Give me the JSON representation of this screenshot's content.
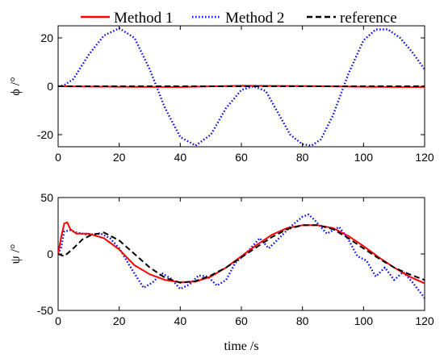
{
  "chart_data": [
    {
      "type": "line",
      "ylabel": "ϕ /°",
      "xlabel": "",
      "xlim": [
        0,
        120
      ],
      "ylim": [
        -25,
        25
      ],
      "xticks": [
        "0",
        "20",
        "40",
        "60",
        "80",
        "100",
        "120"
      ],
      "yticks": [
        "20",
        "0",
        "-20"
      ],
      "ytick_values": [
        20,
        0,
        -20
      ],
      "grid": false,
      "legend": {
        "placement": "top",
        "entries": [
          "Method 1",
          "Method 2",
          "reference"
        ]
      },
      "series": [
        {
          "name": "Method 1",
          "color": "#ff0000",
          "style": "solid",
          "x": [
            0,
            20,
            40,
            60,
            80,
            100,
            120
          ],
          "y": [
            0,
            -0.2,
            -0.3,
            0.2,
            0.1,
            -0.2,
            -0.3
          ]
        },
        {
          "name": "Method 2",
          "color": "#0000ff",
          "style": "dotted",
          "x": [
            0,
            2,
            5,
            10,
            15,
            20,
            25,
            30,
            35,
            40,
            45,
            50,
            55,
            60,
            64,
            68,
            72,
            76,
            80,
            83,
            86,
            90,
            95,
            100,
            104,
            108,
            112,
            116,
            120
          ],
          "y": [
            0,
            0.5,
            3,
            13,
            21,
            24,
            20,
            7,
            -9,
            -21,
            -24.5,
            -20,
            -9,
            -1.5,
            0,
            -2,
            -11,
            -20,
            -24,
            -24.5,
            -22,
            -12,
            5,
            19,
            23.5,
            23.5,
            20,
            14,
            7
          ]
        },
        {
          "name": "reference",
          "color": "#000000",
          "style": "dashed",
          "x": [
            0,
            20,
            40,
            60,
            80,
            100,
            120
          ],
          "y": [
            0,
            0,
            0,
            0,
            0,
            0,
            0
          ]
        }
      ]
    },
    {
      "type": "line",
      "ylabel": "ψ /°",
      "xlabel": "time /s",
      "xlim": [
        0,
        120
      ],
      "ylim": [
        -50,
        50
      ],
      "xticks": [
        "0",
        "20",
        "40",
        "60",
        "80",
        "100",
        "120"
      ],
      "yticks": [
        "50",
        "0",
        "-50"
      ],
      "ytick_values": [
        50,
        0,
        -50
      ],
      "grid": false,
      "series": [
        {
          "name": "Method 1",
          "color": "#ff0000",
          "style": "solid",
          "x": [
            0,
            1,
            2,
            3,
            4,
            6,
            10,
            15,
            20,
            25,
            30,
            35,
            40,
            45,
            50,
            55,
            60,
            65,
            70,
            75,
            80,
            85,
            90,
            95,
            100,
            105,
            110,
            115,
            120
          ],
          "y": [
            0,
            15,
            27,
            28,
            22,
            18,
            18,
            14,
            4,
            -10,
            -18,
            -23,
            -25,
            -24.5,
            -20,
            -12,
            -2,
            8,
            17,
            23,
            25.5,
            25.5,
            23,
            16,
            7,
            -3,
            -12,
            -20,
            -26
          ]
        },
        {
          "name": "Method 2",
          "color": "#0000ff",
          "style": "dotted",
          "x": [
            0,
            1,
            2,
            4,
            6,
            10,
            14,
            17,
            20,
            24,
            28,
            31,
            34,
            37,
            40,
            43,
            46,
            49,
            52,
            55,
            58,
            62,
            66,
            69,
            72,
            76,
            80,
            82,
            84,
            88,
            92,
            95,
            98,
            101,
            104,
            107,
            110,
            113,
            116,
            120
          ],
          "y": [
            0,
            6,
            20,
            21,
            19,
            17,
            18,
            14,
            5,
            -13,
            -30,
            -25,
            -17,
            -22,
            -31,
            -27,
            -19,
            -20,
            -28,
            -23,
            -8,
            2,
            14,
            5,
            13,
            24,
            33,
            35,
            30,
            18,
            24,
            13,
            -2,
            -6,
            -20,
            -12,
            -23,
            -16,
            -25,
            -39
          ]
        },
        {
          "name": "reference",
          "color": "#000000",
          "style": "dashed",
          "x": [
            0,
            2,
            5,
            8,
            11,
            15,
            20,
            25,
            30,
            35,
            40,
            45,
            50,
            55,
            60,
            65,
            70,
            75,
            80,
            85,
            90,
            95,
            100,
            105,
            110,
            115,
            120
          ],
          "y": [
            0,
            -2,
            5,
            13,
            17,
            19,
            12,
            0,
            -12,
            -21,
            -25.5,
            -24,
            -19,
            -12,
            -3,
            6,
            15,
            22,
            25.5,
            25.5,
            22,
            14,
            5,
            -4,
            -12,
            -18,
            -23
          ]
        }
      ]
    }
  ]
}
